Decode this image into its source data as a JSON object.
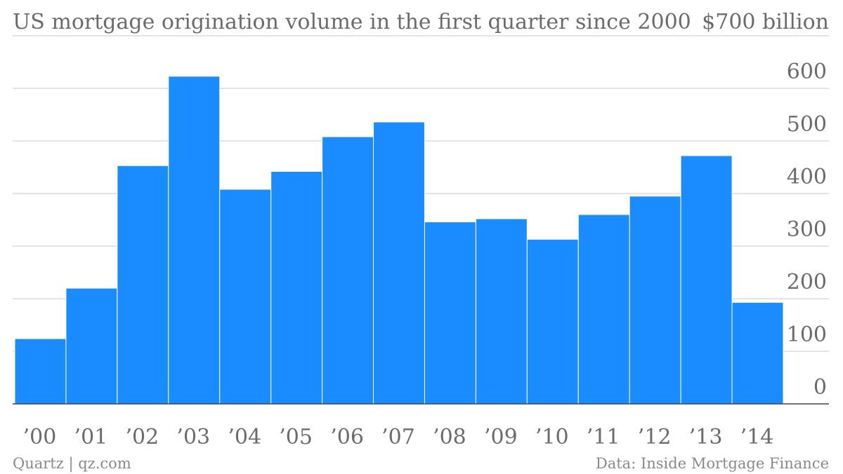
{
  "chart_data": {
    "type": "bar",
    "title": "US mortgage origination volume in the first quarter since 2000",
    "unit_label": "$700 billion",
    "categories": [
      "’00",
      "’01",
      "’02",
      "’03",
      "’04",
      "’05",
      "’06",
      "’07",
      "’08",
      "’09",
      "’10",
      "’11",
      "’12",
      "’13",
      "’14"
    ],
    "values": [
      124,
      220,
      453,
      623,
      408,
      442,
      508,
      536,
      346,
      352,
      313,
      360,
      395,
      472,
      193
    ],
    "ylim": [
      0,
      700
    ],
    "y_ticks": [
      {
        "value": 0,
        "label": "0"
      },
      {
        "value": 100,
        "label": "100"
      },
      {
        "value": 200,
        "label": "200"
      },
      {
        "value": 300,
        "label": "300"
      },
      {
        "value": 400,
        "label": "400"
      },
      {
        "value": 500,
        "label": "500"
      },
      {
        "value": 600,
        "label": "600"
      }
    ],
    "y_axis_side": "right",
    "grid": true,
    "legend": "none",
    "bar_color": "#1a8cff"
  },
  "footer": {
    "source_left": "Quartz | qz.com",
    "source_right": "Data: Inside Mortgage Finance"
  }
}
